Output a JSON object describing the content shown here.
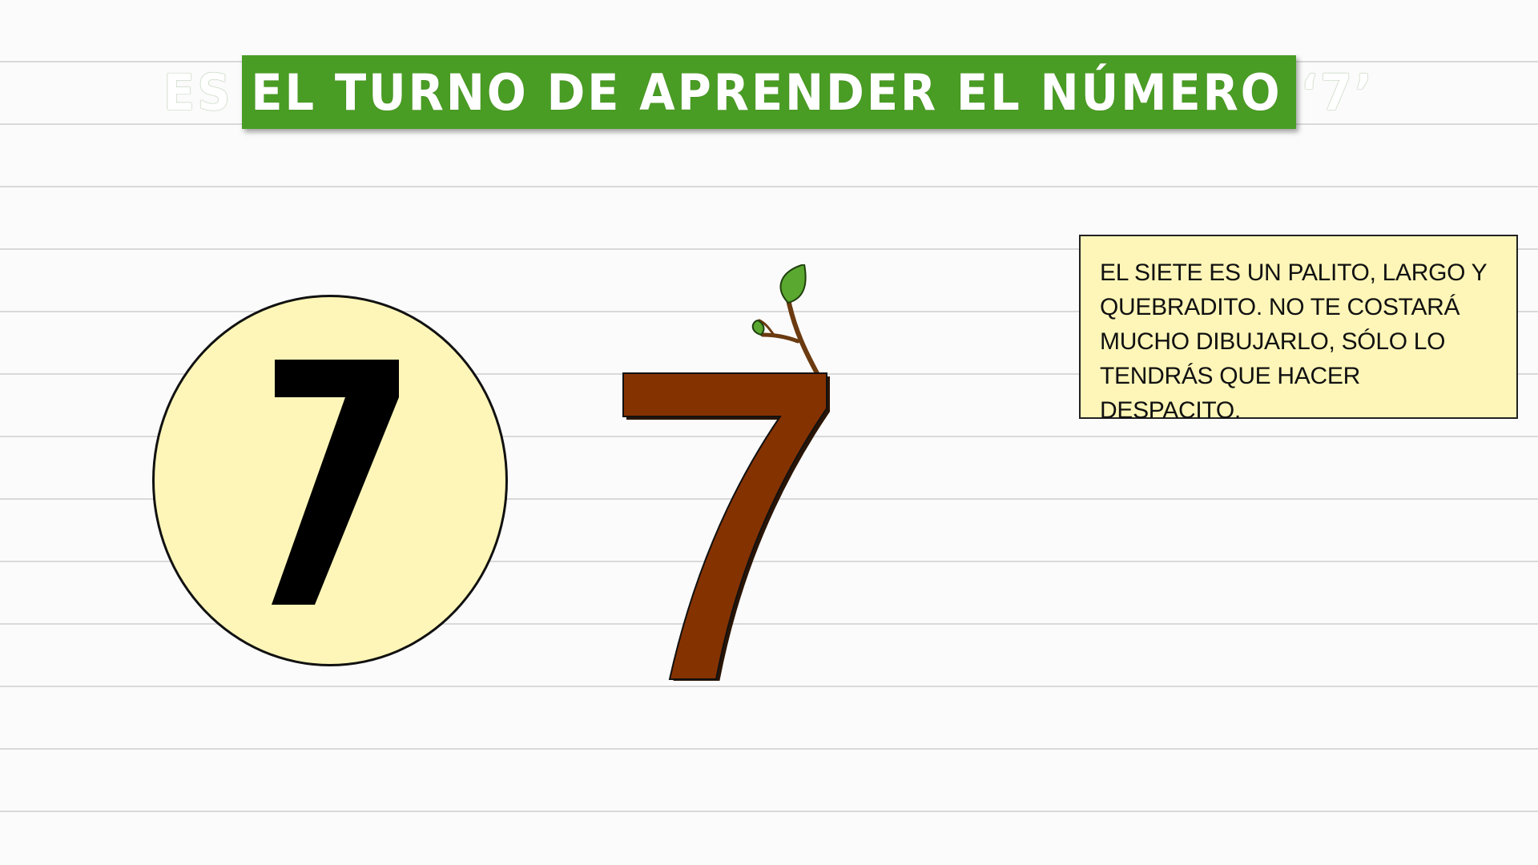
{
  "slide": {
    "title": "ES EL TURNO DE APRENDER EL NÚMERO ‘7’",
    "digit": "7",
    "description": "EL SIETE ES UN PALITO, LARGO Y QUEBRADITO. NO TE COSTARÁ MUCHO DIBUJARLO, SÓLO LO TENDRÁS QUE HACER DESPACITO."
  },
  "colors": {
    "banner_green": "#4a9d24",
    "circle_fill": "#fef6b8",
    "box_fill": "#fef6b8",
    "tree_brown": "#853201",
    "leaf_green": "#5aa82f",
    "digit_black": "#000000"
  },
  "icons": {
    "digit_in_circle": "number-seven-icon",
    "tree_number": "tree-branch-seven-icon"
  }
}
